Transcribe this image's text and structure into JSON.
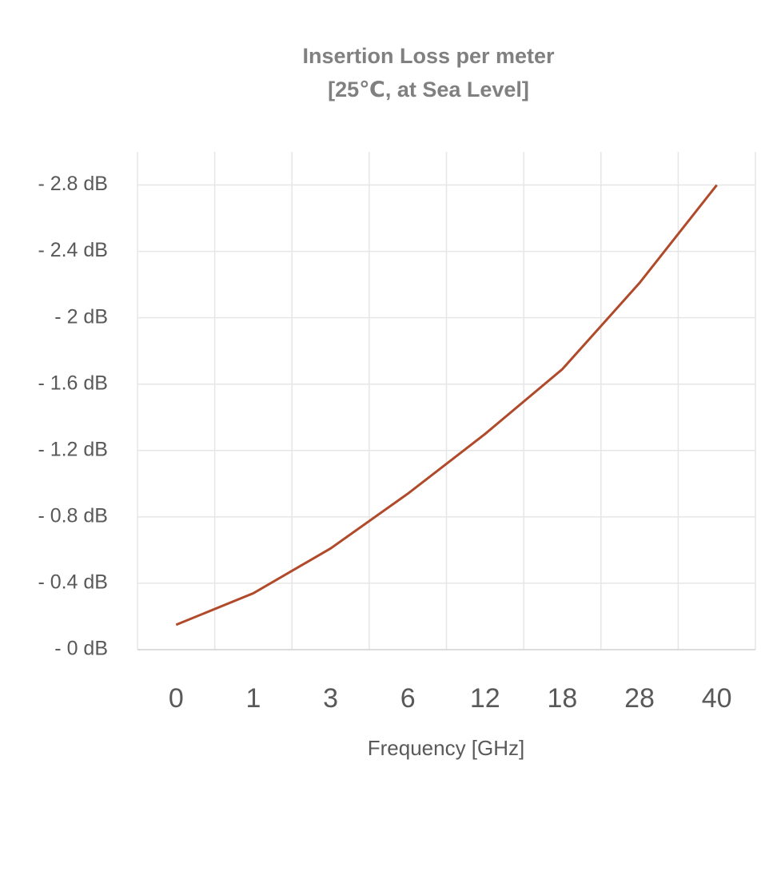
{
  "chart_data": {
    "type": "line",
    "title": [
      "Insertion Loss per meter",
      "[25℃, at Sea Level]"
    ],
    "x_label": "Frequency [GHz]",
    "categories": [
      "0",
      "1",
      "3",
      "6",
      "12",
      "18",
      "28",
      "40"
    ],
    "series": [
      {
        "color": "#b04a2a",
        "values": [
          0.15,
          0.34,
          0.61,
          0.94,
          1.3,
          1.69,
          2.21,
          2.8
        ]
      }
    ],
    "ylim": [
      0,
      3
    ],
    "yticks": [
      {
        "value": 0,
        "label": "- 0 dB"
      },
      {
        "value": 0.4,
        "label": "- 0.4 dB"
      },
      {
        "value": 0.8,
        "label": "- 0.8 dB"
      },
      {
        "value": 1.2,
        "label": "- 1.2 dB"
      },
      {
        "value": 1.6,
        "label": "- 1.6 dB"
      },
      {
        "value": 2,
        "label": "- 2 dB"
      },
      {
        "value": 2.4,
        "label": "- 2.4 dB"
      },
      {
        "value": 2.8,
        "label": "- 2.8 dB"
      }
    ],
    "grid": true
  }
}
